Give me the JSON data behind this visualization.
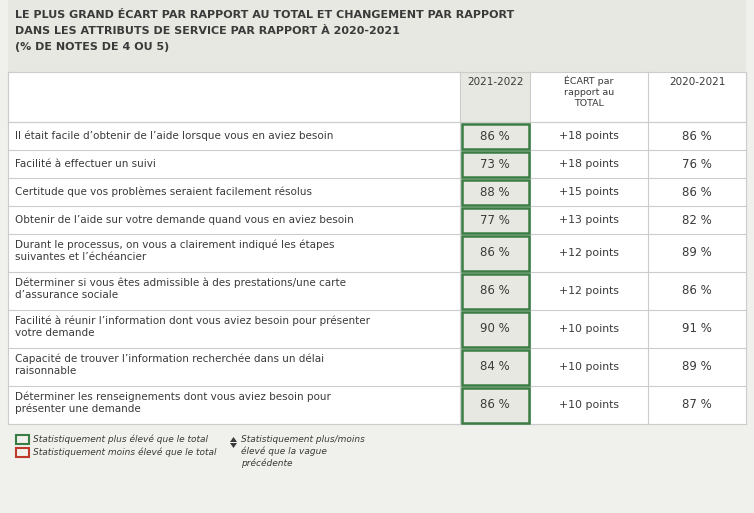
{
  "title_line1": "LE PLUS GRAND ÉCART PAR RAPPORT AU TOTAL ET CHANGEMENT PAR RAPPORT",
  "title_line2": "DANS LES ATTRIBUTS DE SERVICE PAR RAPPORT À 2020-2021",
  "title_line3": "(% DE NOTES DE 4 OU 5)",
  "rows": [
    {
      "label": "Il était facile d’obtenir de l’aide lorsque vous en aviez besoin",
      "val_2122": "86 %",
      "ecart": "+18 points",
      "val_2021": "86 %",
      "highlight": "green",
      "two_lines": false
    },
    {
      "label": "Facilité à effectuer un suivi",
      "val_2122": "73 %",
      "ecart": "+18 points",
      "val_2021": "76 %",
      "highlight": "green",
      "two_lines": false
    },
    {
      "label": "Certitude que vos problèmes seraient facilement résolus",
      "val_2122": "88 %",
      "ecart": "+15 points",
      "val_2021": "86 %",
      "highlight": "green",
      "two_lines": false
    },
    {
      "label": "Obtenir de l’aide sur votre demande quand vous en aviez besoin",
      "val_2122": "77 %",
      "ecart": "+13 points",
      "val_2021": "82 %",
      "highlight": "green",
      "two_lines": false
    },
    {
      "label": "Durant le processus, on vous a clairement indiqué les étapes suivantes et l’échéancier",
      "label2": "suivantes et l’échéancier",
      "val_2122": "86 %",
      "ecart": "+12 points",
      "val_2021": "89 %",
      "highlight": "green",
      "two_lines": true
    },
    {
      "label": "Déterminer si vous êtes admissible à des prestations/une carte d’assurance sociale",
      "label2": "d’assurance sociale",
      "val_2122": "86 %",
      "ecart": "+12 points",
      "val_2021": "86 %",
      "highlight": "green",
      "two_lines": true
    },
    {
      "label": "Facilité à réunir l’information dont vous aviez besoin pour présenter votre demande",
      "label2": "votre demande",
      "val_2122": "90 %",
      "ecart": "+10 points",
      "val_2021": "91 %",
      "highlight": "green",
      "two_lines": true
    },
    {
      "label": "Capacité de trouver l’information recherchée dans un délai raisonnable",
      "label2": "raisonnable",
      "val_2122": "84 %",
      "ecart": "+10 points",
      "val_2021": "89 %",
      "highlight": "green",
      "two_lines": true
    },
    {
      "label": "Déterminer les renseignements dont vous aviez besoin pour présenter une demande",
      "label2": "présenter une demande",
      "val_2122": "86 %",
      "ecart": "+10 points",
      "val_2021": "87 %",
      "highlight": "green",
      "two_lines": true
    }
  ],
  "bg_color": "#f0f0ec",
  "title_bg": "#e8e8e2",
  "white": "#ffffff",
  "green_border": "#3a7d44",
  "red_border": "#c0392b",
  "line_color": "#cccccc",
  "text_color": "#3a3a3a",
  "header_shade": "#e8e8e2",
  "col1_shade": "#e8e8e2"
}
